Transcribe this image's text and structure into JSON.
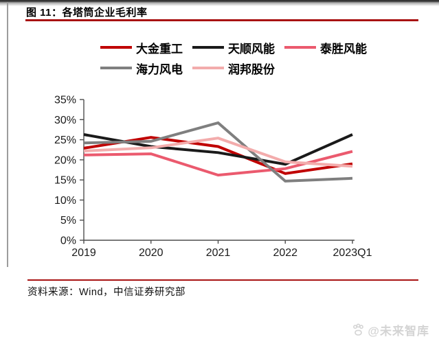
{
  "page": {
    "title": "图 11：各塔筒企业毛利率",
    "source": "资料来源：Wind，中信证券研究部",
    "watermark": "@未来智库",
    "accent_color": "#a81212"
  },
  "chart_data": {
    "type": "line",
    "title": "各塔筒企业毛利率",
    "unit": "%",
    "categories": [
      "2019",
      "2020",
      "2021",
      "2022",
      "2023Q1"
    ],
    "y_ticks": [
      "35%",
      "30%",
      "25%",
      "20%",
      "15%",
      "10%",
      "5%",
      "0%"
    ],
    "ylim": [
      0,
      35
    ],
    "grid": false,
    "legend_position": "top",
    "axis_color": "#4d4d4d",
    "label_color": "#1a1a1a",
    "series": [
      {
        "name": "大金重工",
        "color": "#c00000",
        "values": [
          22.9,
          25.6,
          23.3,
          16.6,
          19.0
        ]
      },
      {
        "name": "天顺风能",
        "color": "#1a1a1a",
        "values": [
          26.3,
          23.3,
          21.8,
          18.9,
          26.3
        ]
      },
      {
        "name": "泰胜风能",
        "color": "#eb5a6e",
        "values": [
          21.2,
          21.5,
          16.2,
          17.8,
          22.1
        ]
      },
      {
        "name": "海力风电",
        "color": "#7f7f7f",
        "values": [
          24.2,
          24.6,
          29.2,
          14.7,
          15.4
        ]
      },
      {
        "name": "润邦股份",
        "color": "#f3acac",
        "values": [
          22.2,
          23.0,
          25.4,
          19.5,
          18.4
        ]
      }
    ]
  }
}
